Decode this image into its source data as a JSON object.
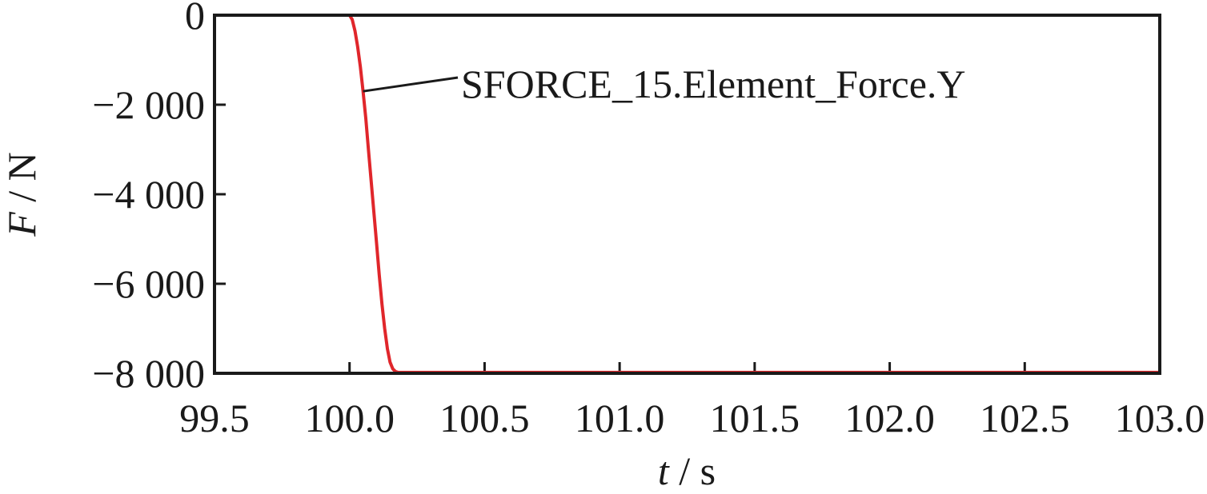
{
  "chart_data": {
    "type": "line",
    "xlabel": {
      "var": "t",
      "sep": " / ",
      "unit": "s"
    },
    "ylabel": {
      "var": "F",
      "sep": " / ",
      "unit": "N"
    },
    "xlim": [
      99.5,
      103.0
    ],
    "ylim": [
      -8000,
      0
    ],
    "x_ticks": [
      99.5,
      100.0,
      100.5,
      101.0,
      101.5,
      102.0,
      102.5,
      103.0
    ],
    "x_tick_labels": [
      "99.5",
      "100.0",
      "100.5",
      "101.0",
      "101.5",
      "102.0",
      "102.5",
      "103.0"
    ],
    "y_ticks": [
      0,
      -2000,
      -4000,
      -6000,
      -8000
    ],
    "y_tick_labels": [
      "0",
      "−2 000",
      "−4 000",
      "−6 000",
      "−8 000"
    ],
    "grid": false,
    "annotation": {
      "text": "SFORCE_15.Element_Force.Y",
      "points_to": {
        "x": 100.05,
        "y": -1700
      }
    },
    "series": [
      {
        "name": "SFORCE_15.Element_Force.Y",
        "color": "#e0262b",
        "x": [
          99.5,
          100.0,
          100.01,
          100.02,
          100.03,
          100.04,
          100.05,
          100.06,
          100.07,
          100.08,
          100.09,
          100.1,
          100.11,
          100.12,
          100.13,
          100.14,
          100.15,
          100.16,
          100.17,
          100.18,
          100.19,
          103.0
        ],
        "y": [
          0,
          0,
          -100,
          -350,
          -700,
          -1150,
          -1700,
          -2300,
          -3000,
          -3700,
          -4400,
          -5100,
          -5800,
          -6450,
          -7000,
          -7450,
          -7750,
          -7900,
          -7960,
          -7980,
          -7980,
          -7980
        ]
      }
    ]
  }
}
